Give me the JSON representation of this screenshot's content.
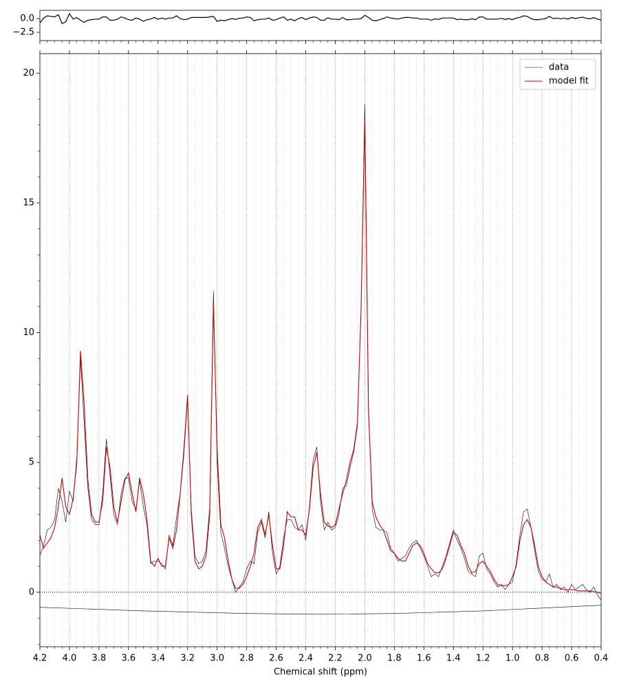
{
  "chart_data": {
    "type": "line",
    "xlabel": "Chemical shift (ppm)",
    "xlim": [
      4.2,
      0.4
    ],
    "ylim": [
      -2.1,
      20.75
    ],
    "xticks": [
      4.2,
      {
        "value": 4,
        "label": "4.0"
      },
      3.8,
      3.6,
      3.4,
      3.2,
      {
        "value": 3,
        "label": "3.0"
      },
      2.8,
      2.6,
      2.4,
      2.2,
      {
        "value": 2,
        "label": "2.0"
      },
      1.8,
      1.6,
      1.4,
      1.2,
      {
        "value": 1,
        "label": "1.0"
      },
      0.8,
      0.6,
      0.4
    ],
    "xminorticks": [
      4.15,
      4.1,
      4.05,
      3.95,
      3.9,
      3.85,
      3.75,
      3.7,
      3.65,
      3.55,
      3.5,
      3.45,
      3.35,
      3.3,
      3.25,
      3.15,
      3.1,
      3.05,
      2.95,
      2.9,
      2.85,
      2.75,
      2.7,
      2.65,
      2.55,
      2.5,
      2.45,
      2.35,
      2.3,
      2.25,
      2.15,
      2.1,
      2.05,
      1.95,
      1.9,
      1.85,
      1.75,
      1.7,
      1.65,
      1.55,
      1.5,
      1.45,
      1.35,
      1.3,
      1.25,
      1.15,
      1.1,
      1.05,
      0.95,
      0.9,
      0.85,
      0.75,
      0.7,
      0.65,
      0.55,
      0.5,
      0.45
    ],
    "yticks": [
      0,
      5,
      10,
      15,
      20
    ],
    "yminorticks": [
      -2,
      -1,
      1,
      2,
      3,
      4,
      6,
      7,
      8,
      9,
      11,
      12,
      13,
      14,
      16,
      17,
      18,
      19
    ],
    "grid": true,
    "legend": "upper right",
    "hline": 0,
    "x": [
      4.2,
      4.175,
      4.15,
      4.125,
      4.1,
      4.075,
      4.05,
      4.025,
      4.0,
      3.975,
      3.95,
      3.925,
      3.9,
      3.875,
      3.85,
      3.825,
      3.8,
      3.775,
      3.75,
      3.725,
      3.7,
      3.675,
      3.65,
      3.625,
      3.6,
      3.575,
      3.55,
      3.525,
      3.5,
      3.475,
      3.45,
      3.425,
      3.4,
      3.375,
      3.35,
      3.325,
      3.3,
      3.275,
      3.25,
      3.225,
      3.2,
      3.175,
      3.15,
      3.125,
      3.1,
      3.075,
      3.05,
      3.025,
      3.0,
      2.975,
      2.95,
      2.925,
      2.9,
      2.875,
      2.85,
      2.825,
      2.8,
      2.775,
      2.75,
      2.725,
      2.7,
      2.675,
      2.65,
      2.625,
      2.6,
      2.575,
      2.55,
      2.525,
      2.5,
      2.475,
      2.45,
      2.425,
      2.4,
      2.375,
      2.35,
      2.325,
      2.3,
      2.275,
      2.25,
      2.225,
      2.2,
      2.175,
      2.15,
      2.125,
      2.1,
      2.075,
      2.05,
      2.025,
      2.0,
      1.975,
      1.95,
      1.925,
      1.9,
      1.875,
      1.85,
      1.825,
      1.8,
      1.775,
      1.75,
      1.725,
      1.7,
      1.675,
      1.65,
      1.625,
      1.6,
      1.575,
      1.55,
      1.525,
      1.5,
      1.475,
      1.45,
      1.425,
      1.4,
      1.375,
      1.35,
      1.325,
      1.3,
      1.275,
      1.25,
      1.225,
      1.2,
      1.175,
      1.15,
      1.125,
      1.1,
      1.075,
      1.05,
      1.025,
      1.0,
      0.975,
      0.95,
      0.925,
      0.9,
      0.875,
      0.85,
      0.825,
      0.8,
      0.775,
      0.75,
      0.725,
      0.7,
      0.675,
      0.65,
      0.625,
      0.6,
      0.575,
      0.55,
      0.525,
      0.5,
      0.475,
      0.45,
      0.425,
      0.4
    ],
    "series": [
      {
        "name": "data",
        "color": "#000000",
        "values": [
          1.4,
          1.8,
          2.4,
          2.5,
          2.8,
          4.0,
          3.5,
          2.7,
          3.9,
          3.5,
          5.2,
          9.0,
          6.5,
          4.0,
          2.8,
          2.6,
          2.6,
          3.8,
          5.9,
          4.5,
          3.0,
          2.6,
          3.8,
          4.4,
          4.4,
          3.5,
          3.2,
          4.3,
          3.3,
          2.6,
          1.1,
          1.2,
          1.2,
          1.1,
          0.9,
          2.2,
          1.8,
          2.9,
          3.8,
          5.3,
          7.5,
          3.2,
          1.4,
          1.1,
          1.2,
          1.6,
          3.3,
          11.6,
          5.0,
          2.3,
          1.7,
          1.0,
          0.5,
          0.0,
          0.2,
          0.4,
          0.9,
          1.2,
          1.1,
          2.3,
          2.7,
          2.1,
          3.1,
          1.5,
          0.7,
          1.0,
          2.1,
          2.8,
          2.8,
          2.5,
          2.4,
          2.6,
          2.0,
          3.3,
          5.1,
          5.6,
          3.5,
          2.4,
          2.7,
          2.4,
          2.5,
          3.0,
          4.0,
          4.1,
          4.8,
          5.4,
          6.4,
          11.0,
          18.8,
          7.2,
          3.2,
          2.5,
          2.4,
          2.4,
          2.3,
          1.7,
          1.5,
          1.2,
          1.3,
          1.4,
          1.7,
          1.9,
          2.0,
          1.7,
          1.4,
          1.0,
          0.6,
          0.7,
          0.6,
          1.0,
          1.4,
          1.9,
          2.4,
          2.0,
          1.7,
          1.3,
          0.8,
          0.7,
          0.6,
          1.4,
          1.5,
          0.9,
          0.7,
          0.4,
          0.2,
          0.3,
          0.1,
          0.3,
          0.4,
          1.1,
          2.2,
          3.1,
          3.2,
          2.5,
          1.6,
          0.8,
          0.5,
          0.4,
          0.7,
          0.2,
          0.3,
          0.1,
          0.2,
          0.0,
          0.3,
          0.1,
          0.2,
          0.3,
          0.1,
          0.0,
          0.2,
          -0.1,
          -0.3
        ]
      },
      {
        "name": "model fit",
        "color": "#cc0000",
        "values": [
          2.2,
          1.7,
          1.9,
          2.1,
          2.5,
          3.3,
          4.4,
          3.3,
          3.0,
          3.6,
          5.0,
          9.3,
          7.2,
          4.3,
          3.0,
          2.7,
          2.7,
          3.5,
          5.6,
          4.8,
          3.3,
          2.7,
          3.5,
          4.3,
          4.6,
          3.8,
          3.1,
          4.4,
          3.8,
          2.8,
          1.2,
          1.0,
          1.3,
          1.0,
          1.0,
          2.1,
          1.7,
          2.4,
          3.8,
          5.5,
          7.6,
          3.0,
          1.2,
          0.9,
          1.0,
          1.4,
          3.0,
          11.2,
          5.5,
          2.6,
          2.1,
          1.2,
          0.5,
          0.15,
          0.15,
          0.3,
          0.6,
          1.0,
          1.5,
          2.5,
          2.8,
          2.2,
          3.0,
          1.8,
          0.9,
          0.9,
          1.8,
          3.1,
          2.9,
          2.9,
          2.4,
          2.4,
          2.2,
          3.2,
          4.8,
          5.4,
          3.8,
          2.7,
          2.55,
          2.5,
          2.6,
          3.2,
          3.8,
          4.3,
          5.0,
          5.5,
          6.5,
          11.0,
          18.2,
          7.0,
          3.5,
          2.9,
          2.6,
          2.4,
          2.0,
          1.6,
          1.5,
          1.3,
          1.2,
          1.2,
          1.5,
          1.8,
          1.9,
          1.8,
          1.5,
          1.1,
          0.9,
          0.75,
          0.75,
          0.9,
          1.3,
          1.8,
          2.3,
          2.2,
          1.8,
          1.5,
          1.0,
          0.75,
          0.8,
          1.1,
          1.2,
          1.0,
          0.8,
          0.5,
          0.3,
          0.25,
          0.25,
          0.3,
          0.6,
          1.0,
          2.0,
          2.6,
          2.8,
          2.5,
          1.8,
          1.0,
          0.6,
          0.4,
          0.3,
          0.2,
          0.2,
          0.15,
          0.1,
          0.1,
          0.1,
          0.08,
          0.05,
          0.05,
          0.05,
          0.05,
          0.02,
          0.0,
          -0.05
        ]
      }
    ],
    "baseline": {
      "color": "#000000",
      "x": [
        4.2,
        3.5,
        2.8,
        2.3,
        1.8,
        1.2,
        0.4
      ],
      "values": [
        -0.58,
        -0.72,
        -0.82,
        -0.85,
        -0.82,
        -0.72,
        -0.5
      ]
    },
    "residual": {
      "color": "#000000",
      "ylim": [
        -4,
        1.5
      ],
      "yticks": [
        {
          "value": 0,
          "label": "0.0"
        },
        {
          "value": -2.5,
          "label": "−2.5"
        }
      ],
      "values": [
        -0.8,
        0.1,
        0.5,
        0.4,
        0.3,
        0.7,
        -0.9,
        -0.6,
        0.9,
        -0.1,
        0.2,
        -0.3,
        -0.7,
        -0.3,
        -0.2,
        -0.1,
        -0.1,
        0.3,
        0.3,
        -0.3,
        -0.3,
        -0.1,
        0.3,
        0.1,
        -0.2,
        -0.3,
        0.1,
        -0.1,
        -0.5,
        -0.2,
        -0.1,
        0.2,
        -0.1,
        0.1,
        -0.1,
        0.1,
        0.1,
        0.5,
        0,
        -0.2,
        -0.1,
        0.2,
        0.2,
        0.2,
        0.2,
        0.2,
        0.3,
        0.4,
        -0.5,
        -0.3,
        -0.4,
        -0.2,
        0,
        -0.15,
        0.05,
        0.1,
        0.3,
        0.2,
        -0.4,
        -0.2,
        -0.1,
        -0.1,
        0.1,
        -0.3,
        -0.2,
        0.1,
        0.3,
        -0.3,
        -0.1,
        -0.4,
        0,
        0.2,
        -0.2,
        0.1,
        0.3,
        0.2,
        -0.3,
        -0.3,
        0.15,
        -0.1,
        -0.1,
        -0.2,
        0.2,
        -0.2,
        -0.2,
        -0.1,
        -0.1,
        0,
        0.6,
        0.2,
        -0.3,
        -0.4,
        -0.2,
        0,
        0.3,
        0.1,
        0,
        -0.1,
        0.1,
        0.2,
        0.2,
        0.1,
        0.1,
        -0.1,
        -0.1,
        -0.1,
        -0.3,
        -0.05,
        -0.15,
        0.1,
        0.1,
        0.1,
        0.1,
        -0.2,
        -0.1,
        -0.2,
        -0.2,
        -0.05,
        -0.2,
        0.3,
        0.3,
        -0.1,
        -0.1,
        -0.1,
        -0.1,
        0.05,
        -0.15,
        0,
        -0.2,
        0.1,
        0.2,
        0.5,
        0.4,
        0,
        -0.2,
        -0.2,
        -0.1,
        0,
        0.4,
        0,
        0.1,
        -0.05,
        0.1,
        -0.1,
        0.2,
        0.02,
        0.15,
        0.25,
        0.05,
        -0.05,
        0.18,
        -0.1,
        -0.25
      ]
    }
  }
}
